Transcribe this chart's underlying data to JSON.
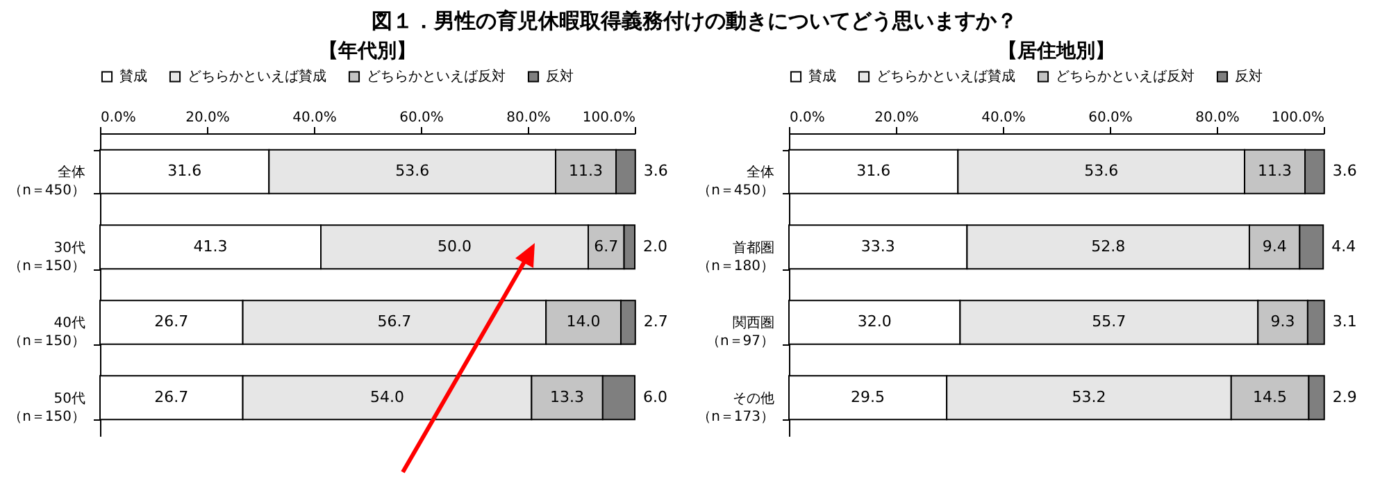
{
  "chart_data": [
    {
      "type": "bar",
      "orientation": "horizontal",
      "stacked": true,
      "title": "図１．男性の育児休暇取得義務付けの動きについてどう思いますか？",
      "subtitle": "【年代別】",
      "legend": "top",
      "categories": [
        "全体（n＝450）",
        "30代（n＝150）",
        "40代（n＝150）",
        "50代（n＝150）"
      ],
      "xlim": [
        0,
        100
      ],
      "xticks": [
        {
          "value": 0,
          "label": "0.0%"
        },
        {
          "value": 20,
          "label": "20.0%"
        },
        {
          "value": 40,
          "label": "40.0%"
        },
        {
          "value": 60,
          "label": "60.0%"
        },
        {
          "value": 80,
          "label": "80.0%"
        },
        {
          "value": 100,
          "label": "100.0%"
        }
      ],
      "series": [
        {
          "name": "賛成",
          "color": "#ffffff",
          "values": [
            31.6,
            41.3,
            26.7,
            26.7
          ],
          "value_labels": [
            "31.6",
            "41.3",
            "26.7",
            "26.7"
          ]
        },
        {
          "name": "どちらかといえば賛成",
          "color": "#e6e6e6",
          "values": [
            53.6,
            50.0,
            56.7,
            54.0
          ],
          "value_labels": [
            "53.6",
            "50.0",
            "56.7",
            "54.0"
          ]
        },
        {
          "name": "どちらかといえば反対",
          "color": "#c4c4c4",
          "values": [
            11.3,
            6.7,
            14.0,
            13.3
          ],
          "value_labels": [
            "11.3",
            "6.7",
            "14.0",
            "13.3"
          ]
        },
        {
          "name": "反対",
          "color": "#7f7f7f",
          "values": [
            3.6,
            2.0,
            2.7,
            6.0
          ],
          "value_labels": [
            "3.6",
            "2.0",
            "2.7",
            "6.0"
          ]
        }
      ]
    },
    {
      "type": "bar",
      "orientation": "horizontal",
      "stacked": true,
      "title": "【居住地別】",
      "legend": "top",
      "categories": [
        "全体（n＝450）",
        "首都圏（n＝180）",
        "関西圏（n＝97）",
        "その他（n＝173）"
      ],
      "xlim": [
        0,
        100
      ],
      "xticks": [
        {
          "value": 0,
          "label": "0.0%"
        },
        {
          "value": 20,
          "label": "20.0%"
        },
        {
          "value": 40,
          "label": "40.0%"
        },
        {
          "value": 60,
          "label": "60.0%"
        },
        {
          "value": 80,
          "label": "80.0%"
        },
        {
          "value": 100,
          "label": "100.0%"
        }
      ],
      "series": [
        {
          "name": "賛成",
          "color": "#ffffff",
          "values": [
            31.6,
            33.3,
            32.0,
            29.5
          ],
          "value_labels": [
            "31.6",
            "33.3",
            "32.0",
            "29.5"
          ]
        },
        {
          "name": "どちらかといえば賛成",
          "color": "#e6e6e6",
          "values": [
            53.6,
            52.8,
            55.7,
            53.2
          ],
          "value_labels": [
            "53.6",
            "52.8",
            "55.7",
            "53.2"
          ]
        },
        {
          "name": "どちらかといえば反対",
          "color": "#c4c4c4",
          "values": [
            11.3,
            9.4,
            9.3,
            14.5
          ],
          "value_labels": [
            "11.3",
            "9.4",
            "9.3",
            "14.5"
          ]
        },
        {
          "name": "反対",
          "color": "#7f7f7f",
          "values": [
            3.6,
            4.4,
            3.1,
            2.9
          ],
          "value_labels": [
            "3.6",
            "4.4",
            "3.1",
            "2.9"
          ]
        }
      ]
    }
  ]
}
